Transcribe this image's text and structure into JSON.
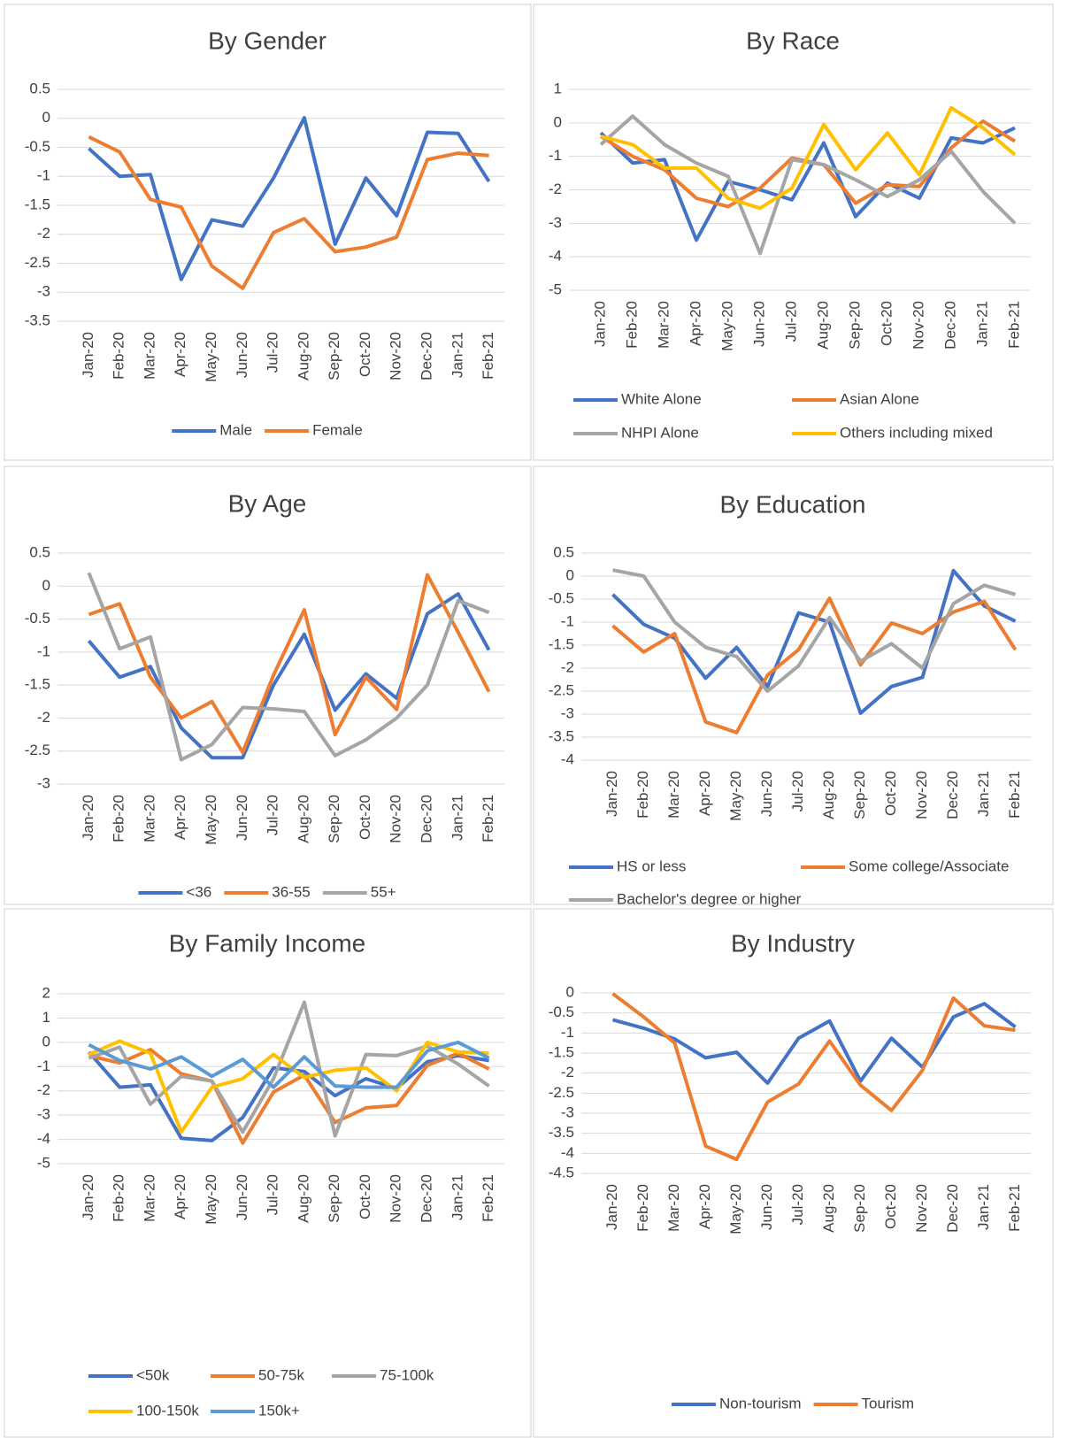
{
  "chart_data": [
    {
      "type": "line",
      "title": "By Gender",
      "categories": [
        "Jan-20",
        "Feb-20",
        "Mar-20",
        "Apr-20",
        "May-20",
        "Jun-20",
        "Jul-20",
        "Aug-20",
        "Sep-20",
        "Oct-20",
        "Nov-20",
        "Dec-20",
        "Jan-21",
        "Feb-21"
      ],
      "series": [
        {
          "name": "Male",
          "color": "#4472c4",
          "values": [
            -0.52,
            -1.0,
            -0.97,
            -2.78,
            -1.75,
            -1.86,
            -1.03,
            0.01,
            -2.17,
            -1.03,
            -1.68,
            -0.24,
            -0.26,
            -1.09
          ]
        },
        {
          "name": "Female",
          "color": "#ed7d31",
          "values": [
            -0.32,
            -0.58,
            -1.4,
            -1.53,
            -2.55,
            -2.93,
            -1.97,
            -1.73,
            -2.3,
            -2.22,
            -2.05,
            -0.71,
            -0.6,
            -0.64
          ]
        }
      ],
      "ylim": [
        -3.5,
        0.5
      ],
      "yticks": [
        0.5,
        0,
        -0.5,
        -1,
        -1.5,
        -2,
        -2.5,
        -3,
        -3.5
      ],
      "grid": true,
      "legend": "bottom"
    },
    {
      "type": "line",
      "title": "By Race",
      "categories": [
        "Jan-20",
        "Feb-20",
        "Mar-20",
        "Apr-20",
        "May-20",
        "Jun-20",
        "Jul-20",
        "Aug-20",
        "Sep-20",
        "Oct-20",
        "Nov-20",
        "Dec-20",
        "Jan-21",
        "Feb-21"
      ],
      "series": [
        {
          "name": "White Alone",
          "color": "#4472c4",
          "values": [
            -0.3,
            -1.2,
            -1.1,
            -3.5,
            -1.75,
            -2.0,
            -2.3,
            -0.6,
            -2.8,
            -1.8,
            -2.25,
            -0.45,
            -0.6,
            -0.15
          ]
        },
        {
          "name": "Asian Alone",
          "color": "#ed7d31",
          "values": [
            -0.4,
            -1.0,
            -1.4,
            -2.25,
            -2.5,
            -1.95,
            -1.05,
            -1.25,
            -2.4,
            -1.85,
            -1.9,
            -0.75,
            0.05,
            -0.55
          ]
        },
        {
          "name": "NHPI Alone",
          "color": "#a5a5a5",
          "values": [
            -0.65,
            0.2,
            -0.65,
            -1.2,
            -1.6,
            -3.9,
            -1.1,
            -1.25,
            -1.7,
            -2.2,
            -1.7,
            -0.85,
            -2.05,
            -3.0
          ]
        },
        {
          "name": "Others including mixed",
          "color": "#ffc000",
          "values": [
            -0.4,
            -0.65,
            -1.35,
            -1.35,
            -2.25,
            -2.55,
            -1.95,
            -0.05,
            -1.4,
            -0.3,
            -1.55,
            0.45,
            -0.15,
            -0.95
          ]
        }
      ],
      "ylim": [
        -5,
        1
      ],
      "yticks": [
        1,
        0,
        -1,
        -2,
        -3,
        -4,
        -5
      ],
      "grid": true,
      "legend": "bottom"
    },
    {
      "type": "line",
      "title": "By Age",
      "categories": [
        "Jan-20",
        "Feb-20",
        "Mar-20",
        "Apr-20",
        "May-20",
        "Jun-20",
        "Jul-20",
        "Aug-20",
        "Sep-20",
        "Oct-20",
        "Nov-20",
        "Dec-20",
        "Jan-21",
        "Feb-21"
      ],
      "series": [
        {
          "name": "<36",
          "color": "#4472c4",
          "values": [
            -0.83,
            -1.38,
            -1.22,
            -2.15,
            -2.6,
            -2.6,
            -1.5,
            -0.73,
            -1.88,
            -1.33,
            -1.7,
            -0.42,
            -0.12,
            -0.97
          ]
        },
        {
          "name": "36-55",
          "color": "#ed7d31",
          "values": [
            -0.43,
            -0.27,
            -1.38,
            -2.0,
            -1.75,
            -2.52,
            -1.35,
            -0.36,
            -2.25,
            -1.38,
            -1.87,
            0.17,
            -0.7,
            -1.6
          ]
        },
        {
          "name": "55+",
          "color": "#a5a5a5",
          "values": [
            0.2,
            -0.95,
            -0.77,
            -2.63,
            -2.4,
            -1.84,
            -1.86,
            -1.9,
            -2.57,
            -2.33,
            -2.0,
            -1.5,
            -0.22,
            -0.4
          ]
        }
      ],
      "ylim": [
        -3,
        0.5
      ],
      "yticks": [
        0.5,
        0,
        -0.5,
        -1,
        -1.5,
        -2,
        -2.5,
        -3
      ],
      "grid": true,
      "legend": "bottom"
    },
    {
      "type": "line",
      "title": "By Education",
      "categories": [
        "Jan-20",
        "Feb-20",
        "Mar-20",
        "Apr-20",
        "May-20",
        "Jun-20",
        "Jul-20",
        "Aug-20",
        "Sep-20",
        "Oct-20",
        "Nov-20",
        "Dec-20",
        "Jan-21",
        "Feb-21"
      ],
      "series": [
        {
          "name": "HS or less",
          "color": "#4472c4",
          "values": [
            -0.4,
            -1.05,
            -1.35,
            -2.22,
            -1.55,
            -2.4,
            -0.8,
            -1.0,
            -2.98,
            -2.4,
            -2.2,
            0.12,
            -0.65,
            -0.98
          ]
        },
        {
          "name": "Some college/Associate",
          "color": "#ed7d31",
          "values": [
            -1.08,
            -1.65,
            -1.25,
            -3.17,
            -3.4,
            -2.15,
            -1.6,
            -0.48,
            -1.93,
            -1.02,
            -1.25,
            -0.78,
            -0.55,
            -1.6
          ]
        },
        {
          "name": "Bachelor's degree or higher",
          "color": "#a5a5a5",
          "values": [
            0.13,
            0.0,
            -1.0,
            -1.55,
            -1.75,
            -2.5,
            -1.95,
            -0.9,
            -1.85,
            -1.47,
            -2.0,
            -0.6,
            -0.2,
            -0.4
          ]
        }
      ],
      "ylim": [
        -4,
        0.5
      ],
      "yticks": [
        0.5,
        0,
        -0.5,
        -1,
        -1.5,
        -2,
        -2.5,
        -3,
        -3.5,
        -4
      ],
      "grid": true,
      "legend": "bottom"
    },
    {
      "type": "line",
      "title": "By Family Income",
      "categories": [
        "Jan-20",
        "Feb-20",
        "Mar-20",
        "Apr-20",
        "May-20",
        "Jun-20",
        "Jul-20",
        "Aug-20",
        "Sep-20",
        "Oct-20",
        "Nov-20",
        "Dec-20",
        "Jan-21",
        "Feb-21"
      ],
      "series": [
        {
          "name": "<50k",
          "color": "#4472c4",
          "values": [
            -0.4,
            -1.85,
            -1.75,
            -3.95,
            -4.05,
            -3.1,
            -1.05,
            -1.2,
            -2.2,
            -1.5,
            -1.9,
            -0.8,
            -0.55,
            -0.75
          ]
        },
        {
          "name": "50-75k",
          "color": "#ed7d31",
          "values": [
            -0.55,
            -0.85,
            -0.3,
            -1.3,
            -1.6,
            -4.15,
            -2.05,
            -1.35,
            -3.3,
            -2.7,
            -2.6,
            -0.95,
            -0.45,
            -1.1
          ]
        },
        {
          "name": "75-100k",
          "color": "#a5a5a5",
          "values": [
            -0.65,
            -0.2,
            -2.55,
            -1.4,
            -1.6,
            -3.7,
            -1.5,
            1.65,
            -3.85,
            -0.5,
            -0.55,
            -0.15,
            -0.9,
            -1.8
          ]
        },
        {
          "name": "100-150k",
          "color": "#ffc000",
          "values": [
            -0.5,
            0.05,
            -0.45,
            -3.7,
            -1.85,
            -1.5,
            -0.5,
            -1.45,
            -1.15,
            -1.05,
            -2.0,
            0.0,
            -0.4,
            -0.45
          ]
        },
        {
          "name": "150k+",
          "color": "#5b9bd5",
          "values": [
            -0.1,
            -0.75,
            -1.1,
            -0.6,
            -1.4,
            -0.7,
            -1.85,
            -0.6,
            -1.8,
            -1.85,
            -1.85,
            -0.35,
            0.0,
            -0.65
          ]
        }
      ],
      "ylim": [
        -5,
        2
      ],
      "yticks": [
        2,
        1,
        0,
        -1,
        -2,
        -3,
        -4,
        -5
      ],
      "grid": true,
      "legend": "bottom"
    },
    {
      "type": "line",
      "title": "By Industry",
      "categories": [
        "Jan-20",
        "Feb-20",
        "Mar-20",
        "Apr-20",
        "May-20",
        "Jun-20",
        "Jul-20",
        "Aug-20",
        "Sep-20",
        "Oct-20",
        "Nov-20",
        "Dec-20",
        "Jan-21",
        "Feb-21"
      ],
      "series": [
        {
          "name": "Non-tourism",
          "color": "#4472c4",
          "values": [
            -0.67,
            -0.88,
            -1.15,
            -1.62,
            -1.48,
            -2.25,
            -1.13,
            -0.7,
            -2.2,
            -1.13,
            -1.85,
            -0.6,
            -0.27,
            -0.85
          ]
        },
        {
          "name": "Tourism",
          "color": "#ed7d31",
          "values": [
            -0.02,
            -0.6,
            -1.25,
            -3.82,
            -4.15,
            -2.72,
            -2.27,
            -1.2,
            -2.3,
            -2.93,
            -1.93,
            -0.13,
            -0.82,
            -0.93
          ]
        }
      ],
      "ylim": [
        -4.5,
        0
      ],
      "yticks": [
        0,
        -0.5,
        -1,
        -1.5,
        -2,
        -2.5,
        -3,
        -3.5,
        -4,
        -4.5
      ],
      "grid": true,
      "legend": "bottom"
    }
  ]
}
